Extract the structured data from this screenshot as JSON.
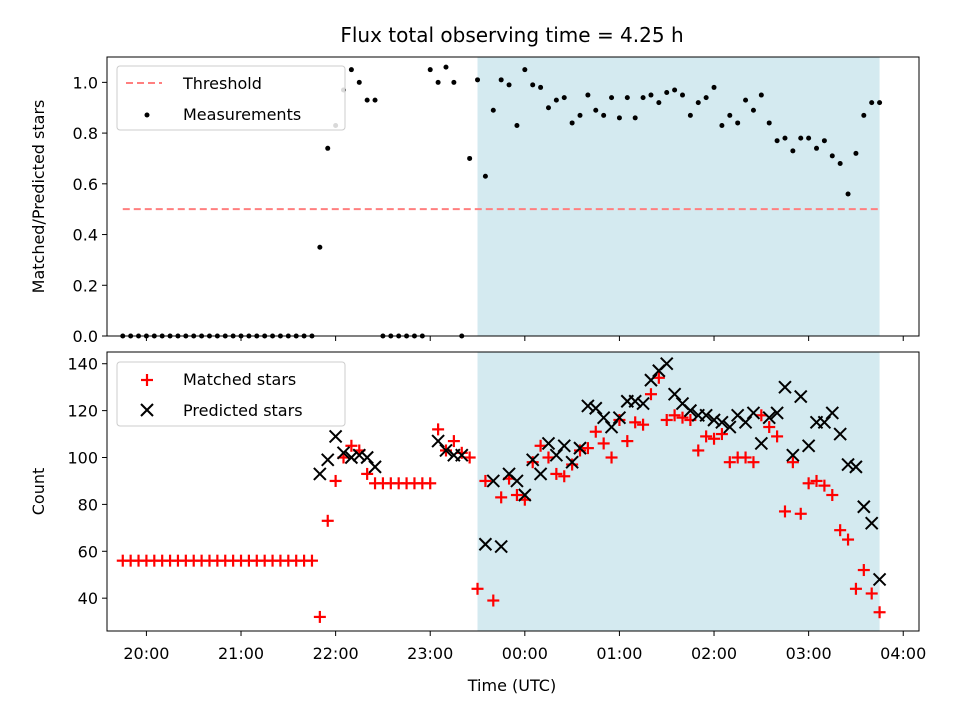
{
  "chart_data": {
    "title": "Flux total observing time = 4.25 h",
    "xlabel": "Time (UTC)",
    "x_range": [
      "19:35",
      "04:10"
    ],
    "x_ticks": [
      "20:00",
      "21:00",
      "22:00",
      "23:00",
      "00:00",
      "01:00",
      "02:00",
      "03:00",
      "04:00"
    ],
    "shaded_interval": [
      "23:30",
      "03:45"
    ],
    "shade_color": "#d4eaf0",
    "panels": [
      {
        "type": "scatter",
        "ylabel": "Matched/Predicted stars",
        "ylim": [
          0,
          1.1
        ],
        "y_ticks": [
          "0.0",
          "0.2",
          "0.4",
          "0.6",
          "0.8",
          "1.0"
        ],
        "legend_position": "top-left",
        "threshold": {
          "name": "Threshold",
          "y": 0.5,
          "x_start": "19:45",
          "x_end": "03:45",
          "color": "#ff7f7f"
        },
        "series": [
          {
            "name": "Measurements",
            "marker": "dot",
            "color": "#000000",
            "x": [
              "19:45",
              "19:50",
              "19:55",
              "20:00",
              "20:05",
              "20:10",
              "20:15",
              "20:20",
              "20:25",
              "20:30",
              "20:35",
              "20:40",
              "20:45",
              "20:50",
              "20:55",
              "21:00",
              "21:05",
              "21:10",
              "21:15",
              "21:20",
              "21:25",
              "21:30",
              "21:35",
              "21:40",
              "21:45",
              "21:50",
              "21:55",
              "22:00",
              "22:05",
              "22:10",
              "22:15",
              "22:20",
              "22:25",
              "22:30",
              "22:35",
              "22:40",
              "22:45",
              "22:50",
              "22:55",
              "23:00",
              "23:05",
              "23:10",
              "23:15",
              "23:20",
              "23:25",
              "23:30",
              "23:35",
              "23:40",
              "23:45",
              "23:50",
              "23:55",
              "00:00",
              "00:05",
              "00:10",
              "00:15",
              "00:20",
              "00:25",
              "00:30",
              "00:35",
              "00:40",
              "00:45",
              "00:50",
              "00:55",
              "01:00",
              "01:05",
              "01:10",
              "01:15",
              "01:20",
              "01:25",
              "01:30",
              "01:35",
              "01:40",
              "01:45",
              "01:50",
              "01:55",
              "02:00",
              "02:05",
              "02:10",
              "02:15",
              "02:20",
              "02:25",
              "02:30",
              "02:35",
              "02:40",
              "02:45",
              "02:50",
              "02:55",
              "03:00",
              "03:05",
              "03:10",
              "03:15",
              "03:20",
              "03:25",
              "03:30",
              "03:35",
              "03:40",
              "03:45"
            ],
            "y": [
              0,
              0,
              0,
              0,
              0,
              0,
              0,
              0,
              0,
              0,
              0,
              0,
              0,
              0,
              0,
              0,
              0,
              0,
              0,
              0,
              0,
              0,
              0,
              0,
              0,
              0.35,
              0.74,
              0.83,
              0.97,
              1.05,
              1.0,
              0.93,
              0.93,
              0,
              0,
              0,
              0,
              0,
              0,
              1.05,
              1.0,
              1.06,
              1.0,
              0,
              0.7,
              1.01,
              0.63,
              0.89,
              1.01,
              0.99,
              0.83,
              1.05,
              0.99,
              0.98,
              0.9,
              0.93,
              0.94,
              0.84,
              0.87,
              0.95,
              0.89,
              0.87,
              0.94,
              0.86,
              0.94,
              0.86,
              0.94,
              0.95,
              0.92,
              0.96,
              0.97,
              0.95,
              0.87,
              0.92,
              0.94,
              0.98,
              0.83,
              0.87,
              0.84,
              0.93,
              0.89,
              0.95,
              0.84,
              0.77,
              0.78,
              0.73,
              0.78,
              0.78,
              0.74,
              0.77,
              0.71,
              0.68,
              0.56,
              0.72,
              0.87,
              0.92,
              0.92
            ]
          }
        ]
      },
      {
        "type": "scatter",
        "ylabel": "Count",
        "ylim": [
          26,
          145
        ],
        "y_ticks": [
          "40",
          "60",
          "80",
          "100",
          "120",
          "140"
        ],
        "legend_position": "top-left",
        "series": [
          {
            "name": "Matched stars",
            "marker": "plus",
            "color": "#ff0000",
            "x": [
              "19:45",
              "19:50",
              "19:55",
              "20:00",
              "20:05",
              "20:10",
              "20:15",
              "20:20",
              "20:25",
              "20:30",
              "20:35",
              "20:40",
              "20:45",
              "20:50",
              "20:55",
              "21:00",
              "21:05",
              "21:10",
              "21:15",
              "21:20",
              "21:25",
              "21:30",
              "21:35",
              "21:40",
              "21:45",
              "21:50",
              "21:55",
              "22:00",
              "22:05",
              "22:10",
              "22:15",
              "22:20",
              "22:25",
              "22:30",
              "22:35",
              "22:40",
              "22:45",
              "22:50",
              "22:55",
              "23:00",
              "23:05",
              "23:10",
              "23:15",
              "23:20",
              "23:25",
              "23:30",
              "23:35",
              "23:40",
              "23:45",
              "23:50",
              "23:55",
              "00:00",
              "00:05",
              "00:10",
              "00:15",
              "00:20",
              "00:25",
              "00:30",
              "00:35",
              "00:40",
              "00:45",
              "00:50",
              "00:55",
              "01:00",
              "01:05",
              "01:10",
              "01:15",
              "01:20",
              "01:25",
              "01:30",
              "01:35",
              "01:40",
              "01:45",
              "01:50",
              "01:55",
              "02:00",
              "02:05",
              "02:10",
              "02:15",
              "02:20",
              "02:25",
              "02:30",
              "02:35",
              "02:40",
              "02:45",
              "02:50",
              "02:55",
              "03:00",
              "03:05",
              "03:10",
              "03:15",
              "03:20",
              "03:25",
              "03:30",
              "03:35",
              "03:40",
              "03:45"
            ],
            "y": [
              56,
              56,
              56,
              56,
              56,
              56,
              56,
              56,
              56,
              56,
              56,
              56,
              56,
              56,
              56,
              56,
              56,
              56,
              56,
              56,
              56,
              56,
              56,
              56,
              56,
              32,
              73,
              90,
              100,
              105,
              103,
              93,
              89,
              89,
              89,
              89,
              89,
              89,
              89,
              89,
              112,
              103,
              107,
              102,
              100,
              44,
              90,
              39,
              83,
              91,
              84,
              82,
              98,
              105,
              100,
              93,
              92,
              97,
              103,
              104,
              111,
              106,
              100,
              116,
              107,
              115,
              114,
              127,
              134,
              116,
              118,
              117,
              116,
              103,
              109,
              108,
              110,
              98,
              100,
              100,
              98,
              118,
              113,
              109,
              77,
              98,
              76,
              89,
              90,
              88,
              84,
              69,
              65,
              44,
              52,
              42,
              34
            ]
          },
          {
            "name": "Predicted stars",
            "marker": "x",
            "color": "#000000",
            "x": [
              "21:50",
              "21:55",
              "22:00",
              "22:05",
              "22:10",
              "22:15",
              "22:20",
              "22:25",
              "23:05",
              "23:10",
              "23:15",
              "23:20",
              "23:35",
              "23:40",
              "23:45",
              "23:50",
              "23:55",
              "00:00",
              "00:05",
              "00:10",
              "00:15",
              "00:20",
              "00:25",
              "00:30",
              "00:35",
              "00:40",
              "00:45",
              "00:50",
              "00:55",
              "01:00",
              "01:05",
              "01:10",
              "01:15",
              "01:20",
              "01:25",
              "01:30",
              "01:35",
              "01:40",
              "01:45",
              "01:50",
              "01:55",
              "02:00",
              "02:05",
              "02:10",
              "02:15",
              "02:20",
              "02:25",
              "02:30",
              "02:35",
              "02:40",
              "02:45",
              "02:50",
              "02:55",
              "03:00",
              "03:05",
              "03:10",
              "03:15",
              "03:20",
              "03:25",
              "03:30",
              "03:35",
              "03:40",
              "03:45"
            ],
            "y": [
              93,
              99,
              109,
              102,
              100,
              101,
              100,
              96,
              107,
              103,
              101,
              101,
              63,
              90,
              62,
              93,
              90,
              84,
              99,
              93,
              106,
              101,
              105,
              98,
              104,
              122,
              121,
              117,
              113,
              117,
              124,
              124,
              123,
              133,
              137,
              140,
              127,
              123,
              120,
              118,
              118,
              116,
              115,
              113,
              118,
              115,
              119,
              106,
              117,
              119,
              130,
              101,
              126,
              105,
              115,
              115,
              119,
              110,
              97,
              96,
              79,
              72,
              48
            ]
          }
        ]
      }
    ]
  }
}
